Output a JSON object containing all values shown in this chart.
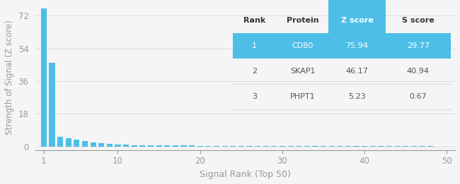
{
  "bar_values": [
    75.94,
    46.17,
    5.23,
    4.5,
    3.8,
    2.9,
    2.3,
    1.8,
    1.4,
    1.1,
    0.9,
    0.8,
    0.7,
    0.65,
    0.6,
    0.55,
    0.5,
    0.47,
    0.44,
    0.41,
    0.38,
    0.36,
    0.34,
    0.32,
    0.3,
    0.28,
    0.27,
    0.26,
    0.25,
    0.24,
    0.23,
    0.22,
    0.21,
    0.2,
    0.19,
    0.18,
    0.17,
    0.16,
    0.15,
    0.14,
    0.13,
    0.12,
    0.11,
    0.1,
    0.09,
    0.08,
    0.07,
    0.06,
    0.05,
    0.04
  ],
  "bar_color": "#4dbee8",
  "bg_color": "#f5f5f5",
  "xlabel": "Signal Rank (Top 50)",
  "ylabel": "Strength of Signal (Z score)",
  "yticks": [
    0,
    18,
    36,
    54,
    72
  ],
  "xticks": [
    1,
    10,
    20,
    30,
    40,
    50
  ],
  "ylim": [
    -2,
    78
  ],
  "xlim": [
    0,
    51
  ],
  "table_headers": [
    "Rank",
    "Protein",
    "Z score",
    "S score"
  ],
  "table_rows": [
    [
      "1",
      "CD80",
      "75.94",
      "29.77"
    ],
    [
      "2",
      "SKAP1",
      "46.17",
      "40.94"
    ],
    [
      "3",
      "PHPT1",
      "5.23",
      "0.67"
    ]
  ],
  "row1_bg": "#4dbee8",
  "row1_text": "#ffffff",
  "row_text": "#555555",
  "header_text": "#333333",
  "zscore_header_bg": "#4dbee8",
  "zscore_header_text": "#ffffff",
  "grid_color": "#dddddd",
  "axis_color": "#999999",
  "tick_color": "#999999"
}
